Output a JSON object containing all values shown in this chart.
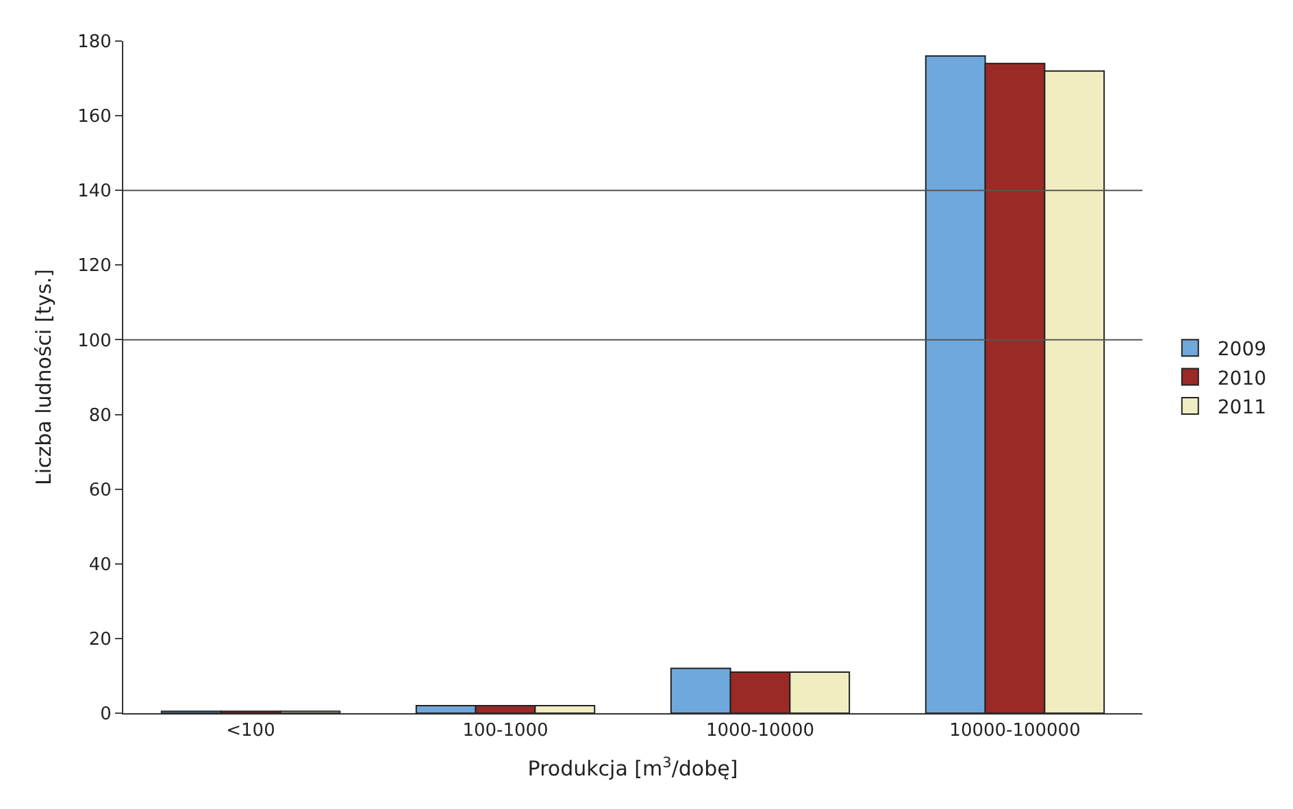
{
  "chart_data": {
    "type": "bar",
    "xlabel": "Produkcja [m$^{3}$/dobę]",
    "ylabel": "Liczba ludności [tys.]",
    "categories": [
      "<100",
      "100-1000",
      "1000-10000",
      "10000-100000"
    ],
    "series": [
      {
        "name": "2009",
        "color": "#6fa8dc",
        "values": [
          0.5,
          2,
          12,
          176
        ]
      },
      {
        "name": "2010",
        "color": "#9b2a26",
        "values": [
          0.5,
          2,
          11,
          174
        ]
      },
      {
        "name": "2011",
        "color": "#f0eec0",
        "values": [
          0.5,
          2,
          11,
          172
        ]
      }
    ],
    "ylim": [
      0,
      180
    ],
    "yticks": [
      0,
      20,
      40,
      60,
      80,
      100,
      120,
      140,
      160,
      180
    ],
    "ref_lines": [
      {
        "axis": "y",
        "value": 100,
        "color": "#555555"
      },
      {
        "axis": "y",
        "value": 140,
        "color": "#555555"
      }
    ],
    "legend": "right"
  }
}
